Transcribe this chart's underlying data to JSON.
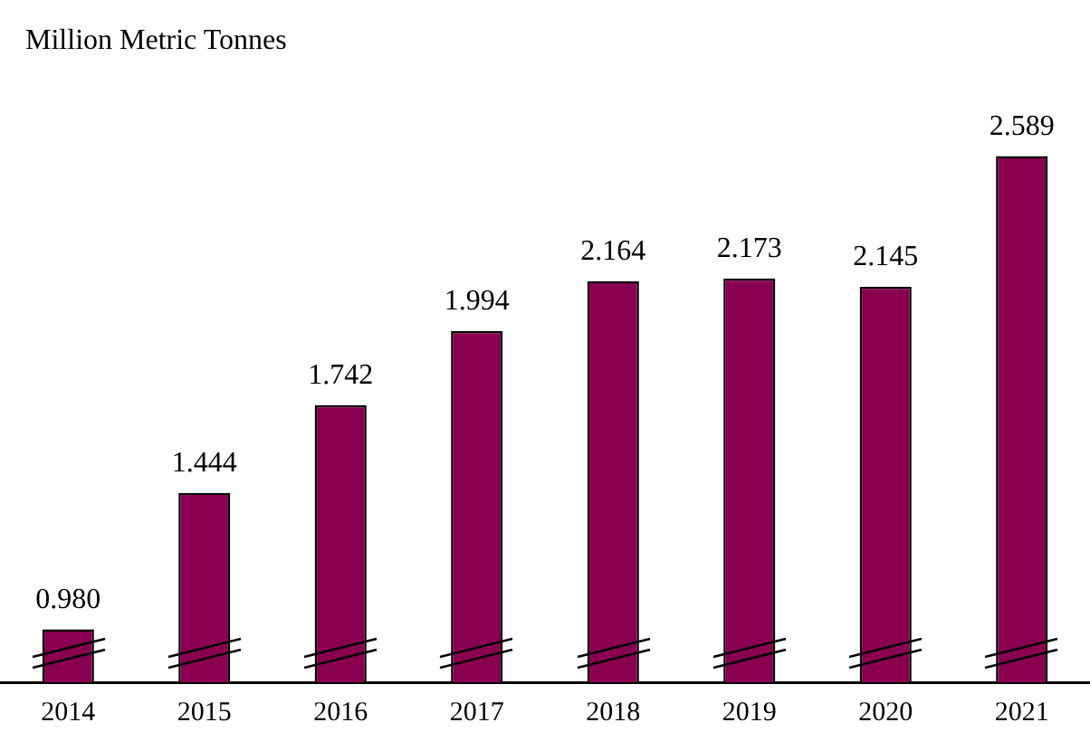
{
  "chart_data": {
    "type": "bar",
    "ylabel": "Million Metric Tonnes",
    "categories": [
      "2014",
      "2015",
      "2016",
      "2017",
      "2018",
      "2019",
      "2020",
      "2021"
    ],
    "values": [
      0.98,
      1.444,
      1.742,
      1.994,
      2.164,
      2.173,
      2.145,
      2.589
    ],
    "value_labels": [
      "0.980",
      "1.444",
      "1.742",
      "1.994",
      "2.164",
      "2.173",
      "2.145",
      "2.589"
    ],
    "color": "#8a0050",
    "tick_labels": "x"
  }
}
